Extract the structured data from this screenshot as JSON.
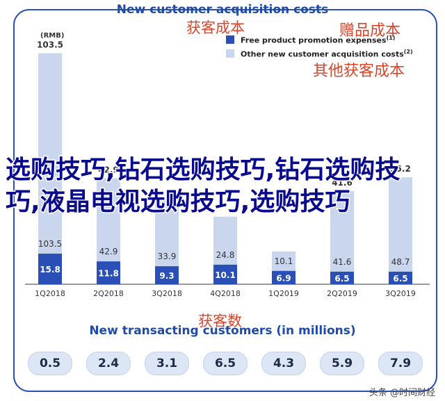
{
  "header": {
    "title": "New customer acquisition costs",
    "cn_title": "获客成本",
    "unit": "(RMB)"
  },
  "legend": {
    "item1": "Free product promotion expenses",
    "item1_note": "(1)",
    "item1_cn": "赠品成本",
    "item1_color": "#2a4fb6",
    "item2": "Other new customer acquisition costs",
    "item2_note": "(2)",
    "item2_cn": "其他获客成本",
    "item2_color": "#c9d6ee"
  },
  "overlay_text": "选购技巧,钻石选购技巧,钻石选购技巧,液晶电视选购技巧,选购技巧",
  "chart_data": {
    "type": "bar",
    "stacked": true,
    "categories": [
      "1Q2018",
      "2Q2018",
      "3Q2018",
      "4Q2018",
      "1Q2019",
      "2Q2019",
      "3Q2019"
    ],
    "series": [
      {
        "name": "Free product promotion expenses",
        "values": [
          15.8,
          11.8,
          9.3,
          10.1,
          6.9,
          6.5,
          6.5
        ],
        "color": "#2a4fb6"
      },
      {
        "name": "Other new customer acquisition costs",
        "values": [
          103.5,
          42.9,
          33.9,
          24.8,
          10.1,
          41.6,
          48.7
        ],
        "color": "#c9d6ee"
      }
    ],
    "top_labels": [
      "103.5",
      "42.9",
      "",
      "",
      "",
      "41.6",
      "55.2"
    ],
    "ylim": [
      0,
      130
    ],
    "title": "New customer acquisition costs",
    "ylabel": "(RMB)"
  },
  "bottom": {
    "cn_title": "获客数",
    "title": "New transacting customers (in millions)",
    "values": [
      "0.5",
      "2.4",
      "3.1",
      "6.5",
      "4.3",
      "5.9",
      "7.9"
    ]
  },
  "watermark": "头条 @时间财经"
}
